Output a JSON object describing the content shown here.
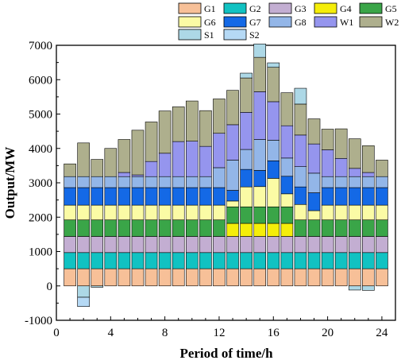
{
  "chart_data": {
    "type": "bar",
    "stacked": true,
    "xlabel": "Period of time/h",
    "ylabel": "Output/MW",
    "xlim": [
      0,
      25
    ],
    "ylim": [
      -1000,
      7000
    ],
    "xticks": [
      0,
      4,
      8,
      12,
      16,
      20,
      24
    ],
    "yticks": [
      -1000,
      0,
      1000,
      2000,
      3000,
      4000,
      5000,
      6000,
      7000
    ],
    "grid": false,
    "legend_position": "top-right",
    "x": [
      1,
      2,
      3,
      4,
      5,
      6,
      7,
      8,
      9,
      10,
      11,
      12,
      13,
      14,
      15,
      16,
      17,
      18,
      19,
      20,
      21,
      22,
      23,
      24
    ],
    "series": [
      {
        "name": "G1",
        "color": "#f7c098",
        "values": [
          500,
          500,
          500,
          500,
          500,
          500,
          500,
          500,
          500,
          500,
          500,
          500,
          500,
          500,
          500,
          500,
          500,
          500,
          500,
          500,
          500,
          500,
          500,
          500
        ]
      },
      {
        "name": "G2",
        "color": "#11c2c2",
        "values": [
          470,
          470,
          470,
          470,
          470,
          470,
          470,
          470,
          470,
          470,
          470,
          470,
          470,
          470,
          470,
          470,
          470,
          470,
          470,
          470,
          470,
          470,
          470,
          470
        ]
      },
      {
        "name": "G3",
        "color": "#c3aed2",
        "values": [
          470,
          470,
          470,
          470,
          470,
          470,
          470,
          470,
          470,
          470,
          470,
          470,
          470,
          470,
          470,
          470,
          470,
          470,
          470,
          470,
          470,
          470,
          470,
          470
        ]
      },
      {
        "name": "G4",
        "color": "#f5ee0a",
        "values": [
          0,
          0,
          0,
          0,
          0,
          0,
          0,
          0,
          0,
          0,
          0,
          0,
          380,
          380,
          380,
          380,
          380,
          0,
          0,
          0,
          0,
          0,
          0,
          0
        ]
      },
      {
        "name": "G5",
        "color": "#3aa548",
        "values": [
          480,
          480,
          480,
          480,
          480,
          480,
          480,
          480,
          480,
          480,
          480,
          480,
          480,
          480,
          480,
          480,
          480,
          480,
          480,
          480,
          480,
          480,
          480,
          480
        ]
      },
      {
        "name": "G6",
        "color": "#fbfba5",
        "values": [
          430,
          430,
          430,
          430,
          430,
          430,
          430,
          430,
          430,
          430,
          430,
          430,
          170,
          580,
          590,
          830,
          380,
          450,
          270,
          430,
          430,
          430,
          430,
          430
        ]
      },
      {
        "name": "G7",
        "color": "#1469e6",
        "values": [
          510,
          510,
          510,
          510,
          510,
          510,
          510,
          510,
          510,
          510,
          510,
          510,
          310,
          510,
          470,
          510,
          510,
          510,
          520,
          510,
          510,
          510,
          510,
          510
        ]
      },
      {
        "name": "G8",
        "color": "#93b6e8",
        "values": [
          320,
          320,
          320,
          320,
          320,
          320,
          320,
          320,
          320,
          320,
          320,
          580,
          880,
          580,
          900,
          600,
          530,
          590,
          570,
          320,
          320,
          320,
          320,
          320
        ]
      },
      {
        "name": "W1",
        "color": "#9595ee",
        "values": [
          0,
          0,
          0,
          0,
          120,
          50,
          440,
          680,
          1020,
          1030,
          880,
          1000,
          1030,
          1080,
          1390,
          1120,
          940,
          920,
          850,
          780,
          530,
          240,
          120,
          0
        ]
      },
      {
        "name": "W2",
        "color": "#aeaf8d",
        "values": [
          370,
          980,
          500,
          820,
          960,
          1300,
          1150,
          1230,
          1010,
          1170,
          1040,
          1000,
          1000,
          1000,
          1000,
          1000,
          960,
          900,
          730,
          600,
          860,
          860,
          780,
          480
        ]
      },
      {
        "name": "S1",
        "color": "#add8e6",
        "values": [
          0,
          -330,
          -40,
          0,
          0,
          0,
          0,
          0,
          0,
          0,
          0,
          0,
          0,
          140,
          390,
          130,
          0,
          460,
          0,
          0,
          0,
          -120,
          -130,
          0
        ]
      },
      {
        "name": "S2",
        "color": "#b5d9f5",
        "values": [
          0,
          -270,
          0,
          0,
          0,
          0,
          0,
          0,
          0,
          0,
          0,
          0,
          0,
          0,
          0,
          0,
          0,
          0,
          0,
          0,
          0,
          0,
          0,
          0
        ]
      }
    ]
  }
}
